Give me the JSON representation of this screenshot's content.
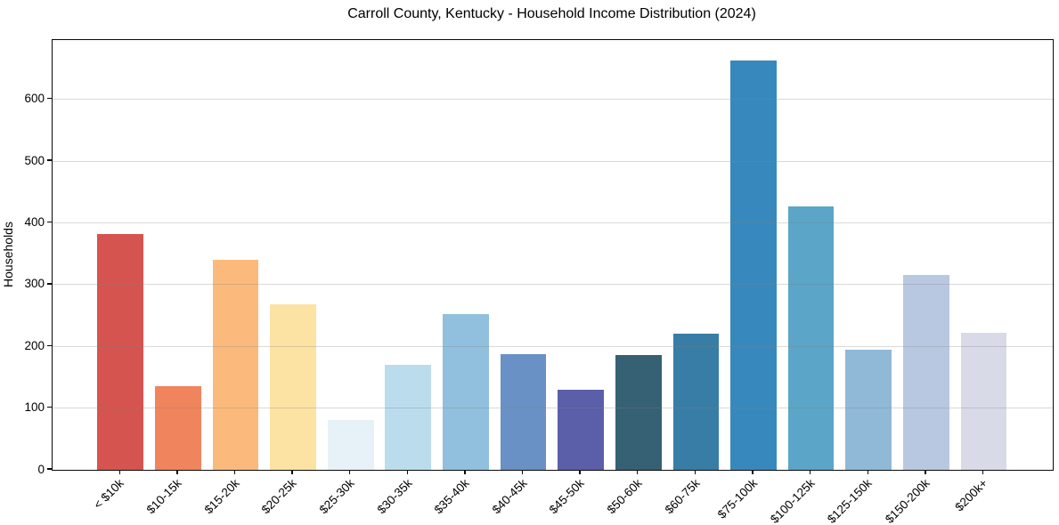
{
  "chart_data": {
    "type": "bar",
    "title": "Carroll County, Kentucky - Household Income Distribution (2024)",
    "xlabel": "",
    "ylabel": "Households",
    "categories": [
      "< $10k",
      "$10-15k",
      "$15-20k",
      "$20-25k",
      "$25-30k",
      "$30-35k",
      "$35-40k",
      "$40-45k",
      "$45-50k",
      "$50-60k",
      "$60-75k",
      "$75-100k",
      "$100-125k",
      "$125-150k",
      "$150-200k",
      "$200k+"
    ],
    "values": [
      382,
      135,
      340,
      268,
      80,
      170,
      252,
      188,
      129,
      186,
      220,
      663,
      427,
      195,
      315,
      222
    ],
    "bar_colors": [
      "#d5544f",
      "#f0845d",
      "#fbba7c",
      "#fce3a3",
      "#e7f2f8",
      "#bbdcec",
      "#90c0dd",
      "#6991c5",
      "#5b5fa9",
      "#366073",
      "#377da6",
      "#3789bd",
      "#5aa5c8",
      "#90b9d8",
      "#b9c8e1",
      "#d8dae8"
    ],
    "y_ticks": [
      0,
      100,
      200,
      300,
      400,
      500,
      600
    ],
    "ylim": [
      0,
      696
    ],
    "bar_width_units": 0.8,
    "grid": "horizontal gridlines only, light gray, drawn over bars",
    "legend": "none",
    "x_tick_rotation_deg": 45
  }
}
